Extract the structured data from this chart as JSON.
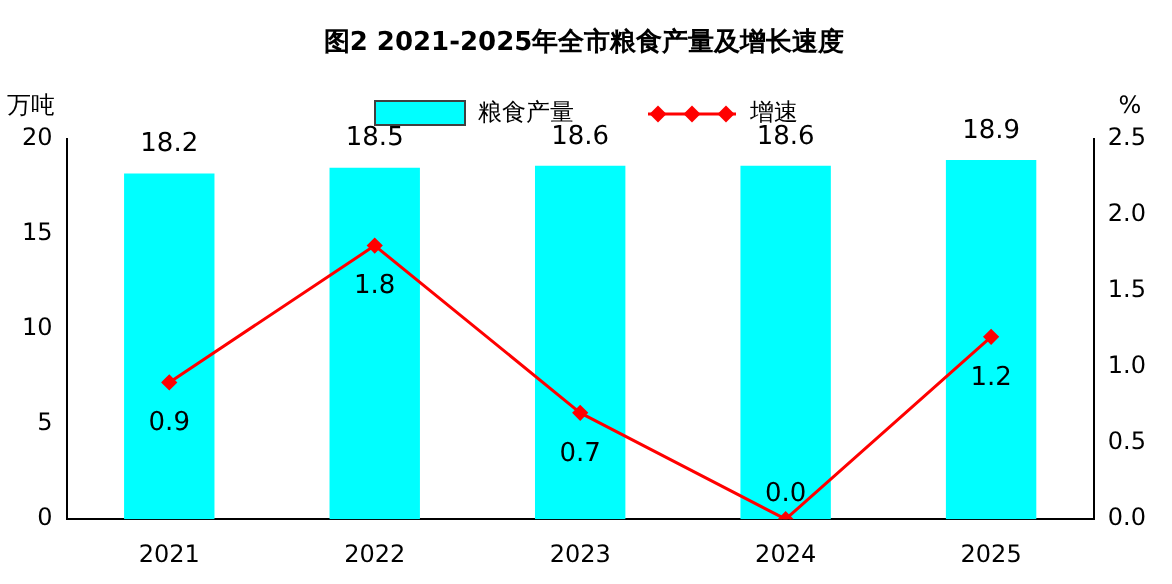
{
  "chart_data": {
    "type": "bar",
    "title": "图2 2021-2025年全市粮食产量及增长速度",
    "ylabel": "万吨",
    "y2label": "%",
    "categories": [
      "2021",
      "2022",
      "2023",
      "2024",
      "2025"
    ],
    "series": [
      {
        "name": "粮食产量",
        "color": "#00ffff",
        "values": [
          18.2,
          18.5,
          18.6,
          18.6,
          18.9
        ],
        "value_labels": [
          "18.2",
          "18.5",
          "18.6",
          "18.6",
          "18.9"
        ]
      },
      {
        "name": "增速",
        "type": "line",
        "axis": "y2",
        "color": "#ff0000",
        "values": [
          0.9,
          1.8,
          0.7,
          0.0,
          1.2
        ],
        "value_labels": [
          "0.9",
          "1.8",
          "0.7",
          "0.0",
          "1.2"
        ]
      }
    ],
    "ylim": [
      0,
      20
    ],
    "yticks": [
      0,
      5,
      10,
      15,
      20
    ],
    "y2lim": [
      0,
      2.5
    ],
    "y2ticks": [
      {
        "value": 0,
        "label": "0.0"
      },
      {
        "value": 0.5,
        "label": "0.5"
      },
      {
        "value": 1,
        "label": "1.0"
      },
      {
        "value": 1.5,
        "label": "1.5"
      },
      {
        "value": 2,
        "label": "2.0"
      },
      {
        "value": 2.5,
        "label": "2.5"
      }
    ],
    "grid": false,
    "legend": "top",
    "marker": "diamond",
    "line_style": "solid"
  }
}
